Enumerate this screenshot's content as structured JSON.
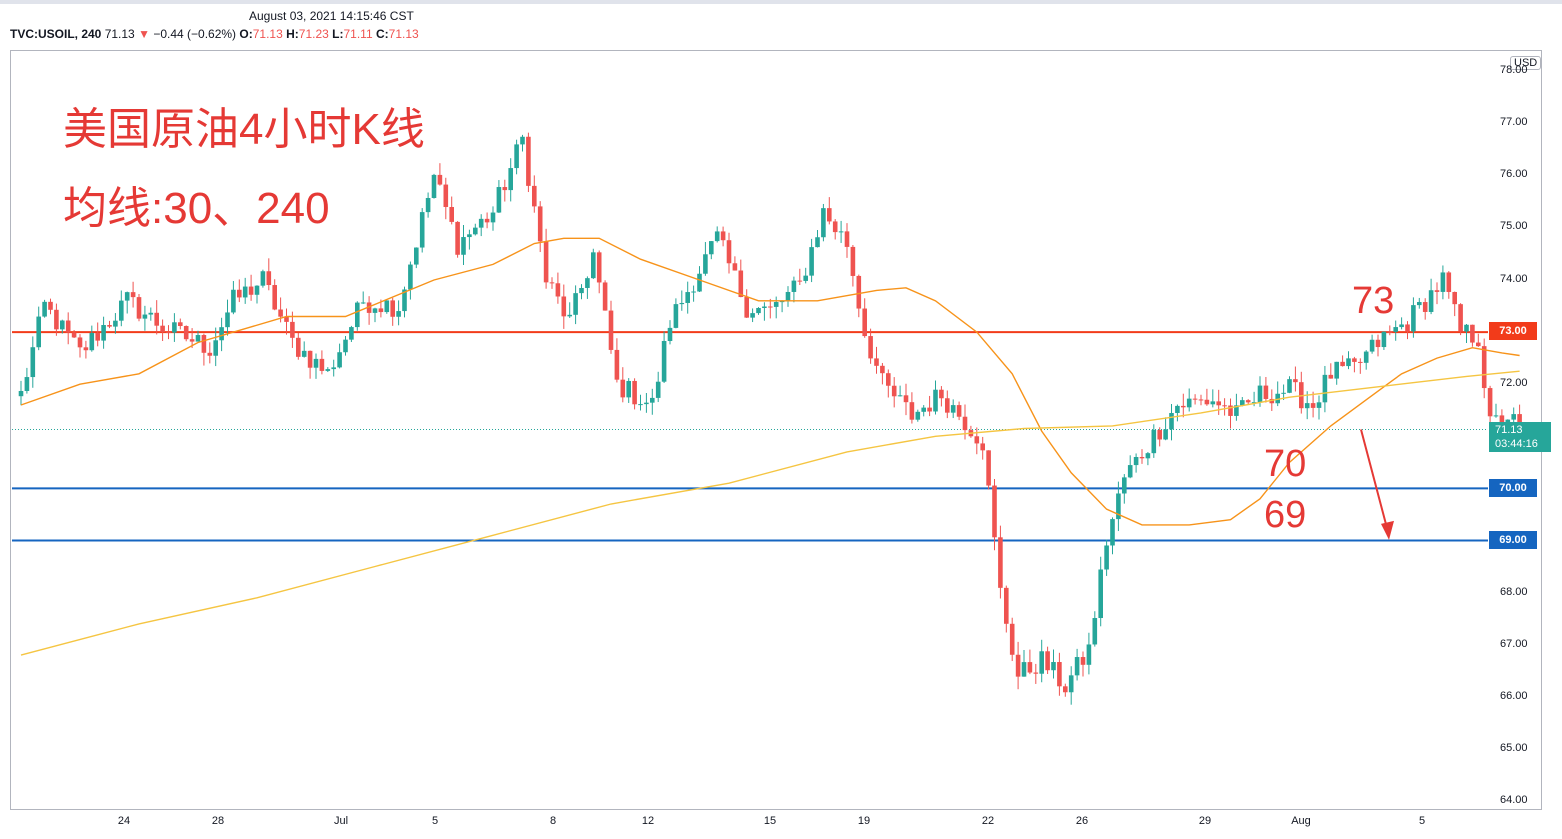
{
  "header": {
    "timestamp": "August 03, 2021 14:15:46 CST",
    "symbol": "TVC:USOIL, 240",
    "last": "71.13",
    "down_arrow": "▼",
    "change": "−0.44 (−0.62%)",
    "o_label": "O:",
    "o_value": "71.13",
    "h_label": "H:",
    "h_value": "71.23",
    "l_label": "L:",
    "l_value": "71.11",
    "c_label": "C:",
    "c_value": "71.13"
  },
  "currency_badge": "USD",
  "annotations": {
    "title": "美国原油4小时K线",
    "ma_label": "均线:30、240",
    "label_73": "73",
    "label_70": "70",
    "label_69": "69"
  },
  "price_tags": {
    "resistance": "73.00",
    "support_1": "70.00",
    "support_2": "69.00",
    "current_price": "71.13",
    "countdown": "03:44:16"
  },
  "colors": {
    "up": "#26a69a",
    "down": "#ef5350",
    "resistance_line": "#f23b1a",
    "support_line": "#1565c0",
    "ma30": "#f7931a",
    "ma240": "#f5c542",
    "annotation": "#e53935"
  },
  "chart_data": {
    "type": "candlestick",
    "timeframe": "240",
    "y_axis_label": "",
    "ylim": [
      63.6,
      78.4
    ],
    "y_ticks": [
      "64.00",
      "65.00",
      "66.00",
      "67.00",
      "68.00",
      "69.00",
      "70.00",
      "71.00",
      "72.00",
      "73.00",
      "74.00",
      "75.00",
      "76.00",
      "77.00",
      "78.00"
    ],
    "x_ticks": [
      "24",
      "28",
      "Jul",
      "5",
      "8",
      "12",
      "15",
      "19",
      "22",
      "26",
      "29",
      "Aug",
      "5"
    ],
    "horizontal_lines": [
      {
        "price": 73.0,
        "color": "#f23b1a"
      },
      {
        "price": 70.0,
        "color": "#1565c0"
      },
      {
        "price": 69.0,
        "color": "#1565c0"
      }
    ],
    "current_price_line": 71.13,
    "path_keypoints": [
      {
        "i": 0,
        "p": 71.8
      },
      {
        "i": 4,
        "p": 73.5
      },
      {
        "i": 10,
        "p": 72.6
      },
      {
        "i": 18,
        "p": 73.6
      },
      {
        "i": 24,
        "p": 73.1
      },
      {
        "i": 32,
        "p": 72.7
      },
      {
        "i": 36,
        "p": 73.6
      },
      {
        "i": 41,
        "p": 74.0
      },
      {
        "i": 46,
        "p": 72.8
      },
      {
        "i": 52,
        "p": 72.2
      },
      {
        "i": 58,
        "p": 73.6
      },
      {
        "i": 64,
        "p": 73.5
      },
      {
        "i": 70,
        "p": 76.0
      },
      {
        "i": 74,
        "p": 74.7
      },
      {
        "i": 80,
        "p": 75.3
      },
      {
        "i": 85,
        "p": 76.7
      },
      {
        "i": 89,
        "p": 74.0
      },
      {
        "i": 93,
        "p": 73.2
      },
      {
        "i": 97,
        "p": 74.5
      },
      {
        "i": 101,
        "p": 72.0
      },
      {
        "i": 107,
        "p": 71.6
      },
      {
        "i": 110,
        "p": 73.2
      },
      {
        "i": 114,
        "p": 74.0
      },
      {
        "i": 118,
        "p": 74.8
      },
      {
        "i": 123,
        "p": 73.5
      },
      {
        "i": 127,
        "p": 73.4
      },
      {
        "i": 132,
        "p": 73.9
      },
      {
        "i": 136,
        "p": 75.3
      },
      {
        "i": 140,
        "p": 74.7
      },
      {
        "i": 143,
        "p": 73.0
      },
      {
        "i": 146,
        "p": 72.0
      },
      {
        "i": 151,
        "p": 71.4
      },
      {
        "i": 156,
        "p": 71.8
      },
      {
        "i": 160,
        "p": 71.3
      },
      {
        "i": 163,
        "p": 70.9
      },
      {
        "i": 166,
        "p": 68.0
      },
      {
        "i": 169,
        "p": 66.4
      },
      {
        "i": 173,
        "p": 66.7
      },
      {
        "i": 177,
        "p": 66.2
      },
      {
        "i": 181,
        "p": 66.9
      },
      {
        "i": 184,
        "p": 69.0
      },
      {
        "i": 187,
        "p": 70.2
      },
      {
        "i": 192,
        "p": 71.0
      },
      {
        "i": 196,
        "p": 71.6
      },
      {
        "i": 202,
        "p": 71.7
      },
      {
        "i": 206,
        "p": 71.4
      },
      {
        "i": 210,
        "p": 71.8
      },
      {
        "i": 215,
        "p": 71.9
      },
      {
        "i": 219,
        "p": 71.6
      },
      {
        "i": 222,
        "p": 72.2
      },
      {
        "i": 226,
        "p": 72.3
      },
      {
        "i": 230,
        "p": 72.8
      },
      {
        "i": 235,
        "p": 73.2
      },
      {
        "i": 241,
        "p": 74.0
      },
      {
        "i": 244,
        "p": 73.0
      },
      {
        "i": 247,
        "p": 72.9
      },
      {
        "i": 249,
        "p": 71.2
      },
      {
        "i": 252,
        "p": 71.4
      },
      {
        "i": 254,
        "p": 71.13
      }
    ],
    "series": [
      {
        "name": "MA30",
        "color": "#f7931a",
        "points": [
          [
            0,
            71.6
          ],
          [
            10,
            72.0
          ],
          [
            20,
            72.2
          ],
          [
            30,
            72.8
          ],
          [
            45,
            73.3
          ],
          [
            55,
            73.3
          ],
          [
            70,
            74.0
          ],
          [
            80,
            74.3
          ],
          [
            87,
            74.7
          ],
          [
            92,
            74.8
          ],
          [
            98,
            74.8
          ],
          [
            105,
            74.4
          ],
          [
            115,
            74.0
          ],
          [
            125,
            73.6
          ],
          [
            135,
            73.6
          ],
          [
            145,
            73.8
          ],
          [
            150,
            73.85
          ],
          [
            155,
            73.6
          ],
          [
            162,
            73.0
          ],
          [
            168,
            72.2
          ],
          [
            173,
            71.1
          ],
          [
            178,
            70.3
          ],
          [
            184,
            69.6
          ],
          [
            190,
            69.3
          ],
          [
            198,
            69.3
          ],
          [
            205,
            69.4
          ],
          [
            210,
            69.8
          ],
          [
            215,
            70.5
          ],
          [
            222,
            71.2
          ],
          [
            228,
            71.7
          ],
          [
            234,
            72.2
          ],
          [
            240,
            72.5
          ],
          [
            246,
            72.7
          ],
          [
            251,
            72.6
          ],
          [
            254,
            72.55
          ]
        ]
      },
      {
        "name": "MA240",
        "color": "#f5c542",
        "points": [
          [
            0,
            66.8
          ],
          [
            20,
            67.4
          ],
          [
            40,
            67.9
          ],
          [
            60,
            68.5
          ],
          [
            80,
            69.1
          ],
          [
            100,
            69.7
          ],
          [
            120,
            70.1
          ],
          [
            140,
            70.7
          ],
          [
            155,
            71.0
          ],
          [
            170,
            71.15
          ],
          [
            185,
            71.2
          ],
          [
            200,
            71.45
          ],
          [
            215,
            71.75
          ],
          [
            230,
            71.95
          ],
          [
            245,
            72.15
          ],
          [
            254,
            72.25
          ]
        ]
      }
    ]
  }
}
